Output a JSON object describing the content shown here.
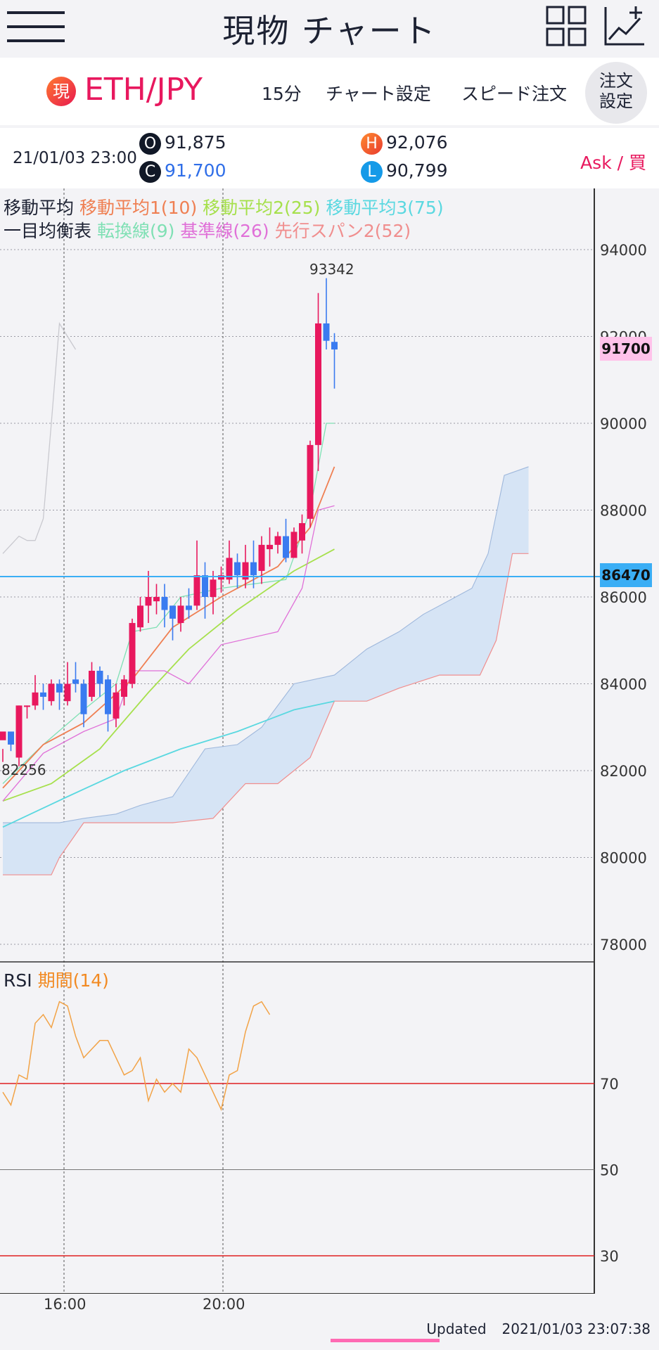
{
  "header": {
    "title": "現物 チャート",
    "menu_icon": "hamburger-menu-icon",
    "layout_icon": "grid-layout-icon",
    "add_chart_icon": "chart-add-icon"
  },
  "symbol": {
    "badge": "現",
    "name": "ETH/JPY",
    "interval": "15分",
    "chart_settings": "チャート設定",
    "speed_order": "スピード注文",
    "order_settings_line1": "注文",
    "order_settings_line2": "設定"
  },
  "ohlc": {
    "datetime": "21/01/03 23:00",
    "open_label": "O",
    "open": "91,875",
    "close_label": "C",
    "close": "91,700",
    "high_label": "H",
    "high": "92,076",
    "low_label": "L",
    "low": "90,799",
    "ask": "Ask / 買"
  },
  "legend": {
    "ma_title": "移動平均",
    "ma1": "移動平均1(10)",
    "ma2": "移動平均2(25)",
    "ma3": "移動平均3(75)",
    "ichimoku_title": "一目均衡表",
    "tenkan": "転換線(9)",
    "kijun": "基準線(26)",
    "senkou2": "先行スパン2(52)",
    "rsi_title": "RSI",
    "rsi_period": "期間(14)"
  },
  "colors": {
    "up": "#e8185e",
    "down": "#3a7bf0",
    "ma1": "#ef7f52",
    "ma2": "#a6e04c",
    "ma3": "#5ad8e0",
    "tenkan": "#7fe0b4",
    "kijun": "#e070d8",
    "senkou2": "#f08e8e",
    "cloud": "#d6e4f5",
    "rsi": "#f2a347",
    "rsi_band": "#e02020",
    "price_line": "#3aaef5"
  },
  "price_axis": {
    "labels": [
      "94000",
      "92000",
      "90000",
      "88000",
      "86000",
      "84000",
      "82000",
      "80000",
      "78000"
    ],
    "current_price": "91700",
    "line_price": "86470",
    "high_mark": "93342",
    "low_mark": "82256"
  },
  "rsi_axis": {
    "labels": [
      "70",
      "50",
      "30"
    ]
  },
  "time_axis": {
    "labels": [
      "16:00",
      "20:00"
    ]
  },
  "footer": {
    "updated_label": "Updated",
    "updated_time": "2021/01/03 23:07:38"
  },
  "chart_data": {
    "type": "candlestick",
    "ylim": [
      77000,
      94800
    ],
    "yticks": [
      94000,
      92000,
      90000,
      88000,
      86000,
      84000,
      82000,
      80000,
      78000
    ],
    "candles": [
      [
        82700,
        82900,
        82500,
        82200
      ],
      [
        82900,
        82600,
        82800,
        82450
      ],
      [
        82300,
        83500,
        83500,
        82100
      ],
      [
        83500,
        83500,
        83500,
        83200
      ],
      [
        83500,
        83800,
        84200,
        83400
      ],
      [
        83800,
        83700,
        84000,
        83400
      ],
      [
        83600,
        84000,
        84100,
        83500
      ],
      [
        84000,
        83800,
        84100,
        83400
      ],
      [
        83600,
        84000,
        84500,
        83500
      ],
      [
        84100,
        84000,
        84500,
        83800
      ],
      [
        84000,
        83300,
        84100,
        83000
      ],
      [
        83700,
        84300,
        84500,
        83600
      ],
      [
        84300,
        84000,
        84400,
        83700
      ],
      [
        84100,
        83300,
        84200,
        82900
      ],
      [
        83200,
        83800,
        84000,
        83000
      ],
      [
        83700,
        84100,
        84200,
        83500
      ],
      [
        84000,
        85400,
        85500,
        83900
      ],
      [
        85300,
        85800,
        86000,
        85200
      ],
      [
        85800,
        86000,
        86600,
        85400
      ],
      [
        85900,
        86000,
        86300,
        85600
      ],
      [
        86000,
        85700,
        86300,
        85300
      ],
      [
        85800,
        85500,
        85800,
        85000
      ],
      [
        85400,
        85800,
        86000,
        85200
      ],
      [
        85800,
        85700,
        86200,
        85500
      ],
      [
        85800,
        86500,
        87300,
        85700
      ],
      [
        86500,
        86000,
        86800,
        85500
      ],
      [
        86000,
        86400,
        86600,
        85600
      ],
      [
        86400,
        86500,
        86700,
        86100
      ],
      [
        86400,
        86900,
        87300,
        86300
      ],
      [
        86800,
        86500,
        87000,
        86200
      ],
      [
        86400,
        86800,
        87200,
        86200
      ],
      [
        86800,
        86500,
        87300,
        86200
      ],
      [
        86600,
        87200,
        87400,
        86300
      ],
      [
        87100,
        87200,
        87600,
        86700
      ],
      [
        87200,
        87400,
        87500,
        87000
      ],
      [
        87400,
        86900,
        87800,
        86800
      ],
      [
        86900,
        87500,
        87600,
        86900
      ],
      [
        87300,
        87700,
        87900,
        87000
      ],
      [
        87800,
        89500,
        89600,
        87600
      ],
      [
        89500,
        92300,
        93000,
        88900
      ],
      [
        92300,
        91900,
        93342,
        91700
      ],
      [
        91875,
        91700,
        92076,
        90799
      ]
    ],
    "ma1": [
      [
        0,
        81600
      ],
      [
        5,
        82600
      ],
      [
        10,
        83100
      ],
      [
        16,
        84100
      ],
      [
        21,
        85300
      ],
      [
        27,
        86000
      ],
      [
        34,
        86700
      ],
      [
        38,
        87600
      ],
      [
        41,
        89000
      ]
    ],
    "ma2": [
      [
        0,
        81300
      ],
      [
        6,
        81700
      ],
      [
        12,
        82500
      ],
      [
        18,
        83800
      ],
      [
        23,
        84800
      ],
      [
        29,
        85700
      ],
      [
        36,
        86600
      ],
      [
        41,
        87100
      ]
    ],
    "ma3": [
      [
        0,
        80700
      ],
      [
        8,
        81400
      ],
      [
        15,
        82000
      ],
      [
        22,
        82500
      ],
      [
        29,
        82900
      ],
      [
        36,
        83400
      ],
      [
        41,
        83600
      ]
    ],
    "tenkan": [
      [
        0,
        81700
      ],
      [
        5,
        82600
      ],
      [
        10,
        83400
      ],
      [
        14,
        84000
      ],
      [
        16,
        85200
      ],
      [
        19,
        85300
      ],
      [
        22,
        86000
      ],
      [
        27,
        86200
      ],
      [
        35,
        86400
      ],
      [
        38,
        88000
      ],
      [
        40,
        90000
      ],
      [
        41,
        90000
      ]
    ],
    "kijun": [
      [
        0,
        81300
      ],
      [
        5,
        82400
      ],
      [
        10,
        82900
      ],
      [
        14,
        83200
      ],
      [
        16,
        84300
      ],
      [
        20,
        84300
      ],
      [
        23,
        84000
      ],
      [
        27,
        84900
      ],
      [
        34,
        85200
      ],
      [
        37,
        86200
      ],
      [
        39,
        88000
      ],
      [
        41,
        88100
      ]
    ],
    "lagging": [
      [
        0,
        87000
      ],
      [
        1,
        87200
      ],
      [
        2,
        87400
      ],
      [
        3,
        87300
      ],
      [
        4,
        87300
      ],
      [
        5,
        87800
      ],
      [
        6,
        90000
      ],
      [
        7,
        92300
      ],
      [
        8,
        92000
      ],
      [
        9,
        91700
      ]
    ],
    "senkou1": [
      [
        0,
        80800
      ],
      [
        7,
        80800
      ],
      [
        10,
        80900
      ],
      [
        14,
        81000
      ],
      [
        17,
        81200
      ],
      [
        21,
        81400
      ],
      [
        25,
        82500
      ],
      [
        29,
        82600
      ],
      [
        32,
        83000
      ],
      [
        36,
        84000
      ],
      [
        41,
        84200
      ],
      [
        45,
        84800
      ],
      [
        49,
        85200
      ],
      [
        52,
        85600
      ],
      [
        56,
        86000
      ],
      [
        58,
        86200
      ],
      [
        60,
        87000
      ],
      [
        62,
        88800
      ],
      [
        65,
        89000
      ]
    ],
    "senkou2": [
      [
        0,
        79600
      ],
      [
        6,
        79600
      ],
      [
        7,
        80000
      ],
      [
        10,
        80800
      ],
      [
        21,
        80800
      ],
      [
        26,
        80900
      ],
      [
        30,
        81700
      ],
      [
        34,
        81700
      ],
      [
        38,
        82300
      ],
      [
        41,
        83600
      ],
      [
        45,
        83600
      ],
      [
        49,
        83900
      ],
      [
        54,
        84200
      ],
      [
        59,
        84200
      ],
      [
        61,
        85000
      ],
      [
        63,
        87000
      ],
      [
        65,
        87000
      ]
    ],
    "rsi": [
      [
        0,
        68
      ],
      [
        1,
        65
      ],
      [
        2,
        72
      ],
      [
        3,
        71
      ],
      [
        4,
        84
      ],
      [
        5,
        86
      ],
      [
        6,
        83
      ],
      [
        7,
        89
      ],
      [
        8,
        88
      ],
      [
        9,
        81
      ],
      [
        10,
        76
      ],
      [
        11,
        78
      ],
      [
        12,
        80
      ],
      [
        13,
        80
      ],
      [
        14,
        76
      ],
      [
        15,
        72
      ],
      [
        16,
        73
      ],
      [
        17,
        76
      ],
      [
        18,
        66
      ],
      [
        19,
        71
      ],
      [
        20,
        68
      ],
      [
        21,
        70
      ],
      [
        22,
        68
      ],
      [
        23,
        78
      ],
      [
        24,
        76
      ],
      [
        25,
        72
      ],
      [
        26,
        68
      ],
      [
        27,
        64
      ],
      [
        28,
        72
      ],
      [
        29,
        73
      ],
      [
        30,
        82
      ],
      [
        31,
        88
      ],
      [
        32,
        89
      ],
      [
        33,
        86
      ]
    ],
    "rsi_levels": [
      70,
      50,
      30
    ]
  }
}
